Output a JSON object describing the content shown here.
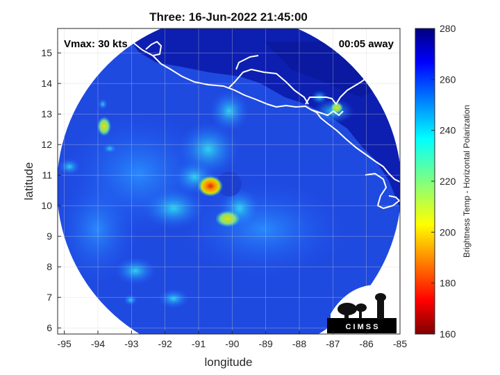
{
  "title": "Three: 16-Jun-2022 21:45:00",
  "annotations": {
    "vmax": "Vmax: 30 kts",
    "time_away": "00:05 away"
  },
  "axes": {
    "xlabel": "longitude",
    "ylabel": "latitude",
    "xlim": [
      -95.2,
      -85
    ],
    "ylim": [
      5.8,
      15.8
    ],
    "xticks": [
      -95,
      -94,
      -93,
      -92,
      -91,
      -90,
      -89,
      -88,
      -87,
      -86,
      -85
    ],
    "yticks": [
      6,
      7,
      8,
      9,
      10,
      11,
      12,
      13,
      14,
      15
    ],
    "grid": true
  },
  "colorbar": {
    "label": "Brightness Temp - Horizontal Polarization",
    "range": [
      160,
      280
    ],
    "ticks": [
      160,
      180,
      200,
      220,
      240,
      260,
      280
    ],
    "colormap": "jet"
  },
  "logo": {
    "text": "C I M S S"
  },
  "colors": {
    "background": "#1e3fd6",
    "outer_ring": "#0a1a8f",
    "coast": "#ffffff"
  }
}
